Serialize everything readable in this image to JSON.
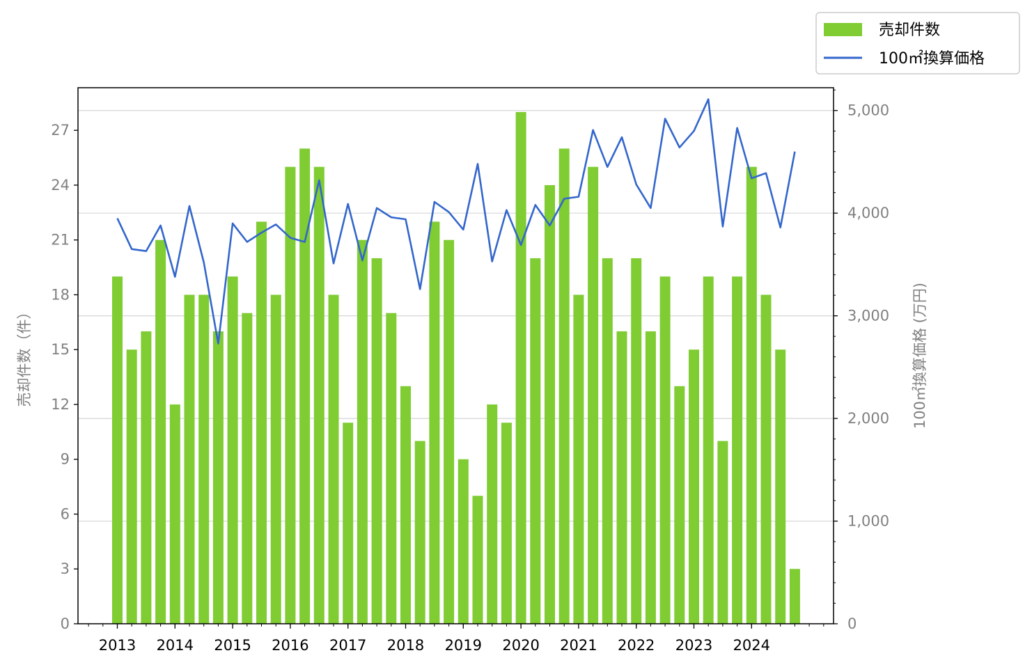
{
  "chart_data": {
    "type": "bar+line",
    "x_labels": [
      "2013",
      "2014",
      "2015",
      "2016",
      "2017",
      "2018",
      "2019",
      "2020",
      "2021",
      "2022",
      "2023",
      "2024"
    ],
    "bars": {
      "name": "売却件数",
      "color": "#7fcc33",
      "values": [
        19,
        15,
        16,
        21,
        12,
        18,
        18,
        16,
        19,
        17,
        22,
        18,
        25,
        26,
        25,
        18,
        11,
        21,
        20,
        17,
        13,
        10,
        22,
        21,
        9,
        7,
        12,
        11,
        28,
        20,
        24,
        26,
        18,
        25,
        20,
        16,
        20,
        16,
        19,
        13,
        15,
        19,
        10,
        19,
        25,
        18,
        15,
        3
      ]
    },
    "line": {
      "name": "100㎡換算価格",
      "color": "#3366cc",
      "values": [
        3950,
        3650,
        3630,
        3880,
        3380,
        4070,
        3520,
        2730,
        3900,
        3720,
        3810,
        3890,
        3760,
        3720,
        4320,
        3510,
        4090,
        3540,
        4050,
        3960,
        3940,
        3260,
        4110,
        4010,
        3840,
        4480,
        3530,
        4030,
        3690,
        4080,
        3880,
        4140,
        4160,
        4810,
        4450,
        4740,
        4280,
        4050,
        4920,
        4640,
        4800,
        5110,
        3870,
        4830,
        4340,
        4390,
        3860,
        4600
      ]
    },
    "y_left": {
      "label": "売却件数（件）",
      "ticks": [
        "0",
        "3",
        "6",
        "9",
        "12",
        "15",
        "18",
        "21",
        "24",
        "27"
      ],
      "lim": [
        0,
        29.33
      ]
    },
    "y_right": {
      "label": "100㎡換算価格 (万円)",
      "ticks": [
        "0",
        "1,000",
        "2,000",
        "3,000",
        "4,000",
        "5,000"
      ],
      "lim": [
        0,
        5222
      ]
    },
    "grid": "horizontal, right axis",
    "legend": {
      "placement": "top-right",
      "entries": [
        "売却件数",
        "100㎡換算価格"
      ]
    }
  }
}
